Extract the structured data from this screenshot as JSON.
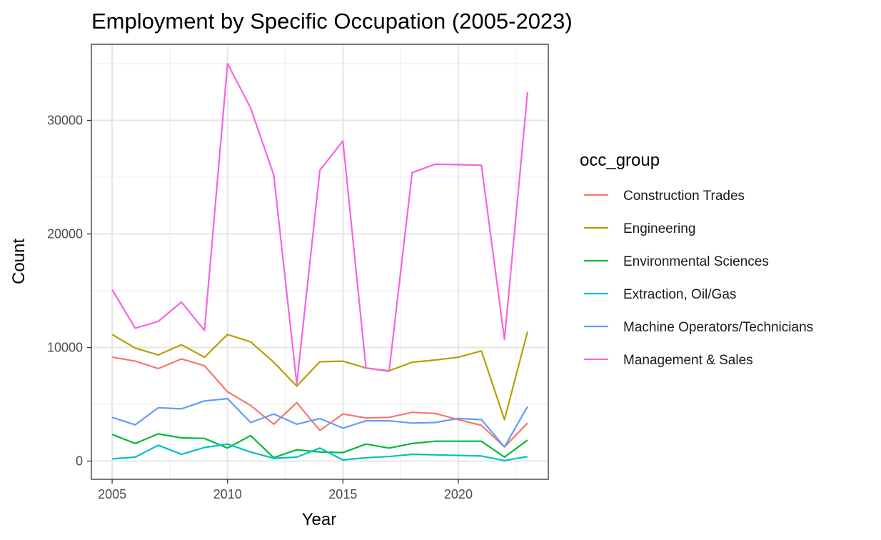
{
  "chart_data": {
    "type": "line",
    "title": "Employment by Specific Occupation (2005-2023)",
    "xlabel": "Year",
    "ylabel": "Count",
    "x": [
      2005,
      2006,
      2007,
      2008,
      2009,
      2010,
      2011,
      2012,
      2013,
      2014,
      2015,
      2016,
      2017,
      2018,
      2019,
      2020,
      2021,
      2022,
      2023
    ],
    "xlim": [
      2004.1,
      2023.9
    ],
    "ylim": [
      -1600,
      36700
    ],
    "xticks": [
      2005,
      2010,
      2015,
      2020
    ],
    "yticks": [
      0,
      10000,
      20000,
      30000
    ],
    "xtick_labels": [
      "2005",
      "2010",
      "2015",
      "2020"
    ],
    "ytick_labels": [
      "0",
      "10000",
      "20000",
      "30000"
    ],
    "grid": true,
    "legend_position": "right",
    "legend_title": "occ_group",
    "series": [
      {
        "name": "Construction Trades",
        "color": "#F8766D",
        "values": [
          9150,
          8800,
          8150,
          9000,
          8400,
          6100,
          4900,
          3250,
          5150,
          2700,
          4150,
          3800,
          3850,
          4300,
          4200,
          3650,
          3150,
          1250,
          3350
        ]
      },
      {
        "name": "Engineering",
        "color": "#B79F00",
        "values": [
          11150,
          9950,
          9350,
          10250,
          9150,
          11150,
          10500,
          8700,
          6600,
          8750,
          8800,
          8200,
          7950,
          8700,
          8900,
          9150,
          9700,
          3650,
          11400
        ]
      },
      {
        "name": "Environmental Sciences",
        "color": "#00BA38",
        "values": [
          2350,
          1550,
          2400,
          2050,
          2000,
          1150,
          2250,
          300,
          1000,
          800,
          750,
          1500,
          1150,
          1550,
          1750,
          1750,
          1750,
          350,
          1850
        ]
      },
      {
        "name": "Extraction, Oil/Gas",
        "color": "#00BFC4",
        "values": [
          200,
          350,
          1400,
          600,
          1200,
          1500,
          800,
          250,
          350,
          1150,
          100,
          300,
          400,
          600,
          550,
          500,
          450,
          50,
          400
        ]
      },
      {
        "name": "Machine Operators/Technicians",
        "color": "#619CFF",
        "values": [
          3850,
          3200,
          4700,
          4600,
          5300,
          5500,
          3400,
          4150,
          3250,
          3750,
          2900,
          3550,
          3550,
          3350,
          3400,
          3750,
          3650,
          1250,
          4800
        ]
      },
      {
        "name": "Management & Sales",
        "color": "#F564E3",
        "values": [
          15100,
          11700,
          12300,
          14000,
          11500,
          35000,
          31100,
          25200,
          6800,
          25600,
          28200,
          8200,
          7900,
          25400,
          26150,
          26100,
          26050,
          10700,
          32500
        ]
      }
    ]
  }
}
